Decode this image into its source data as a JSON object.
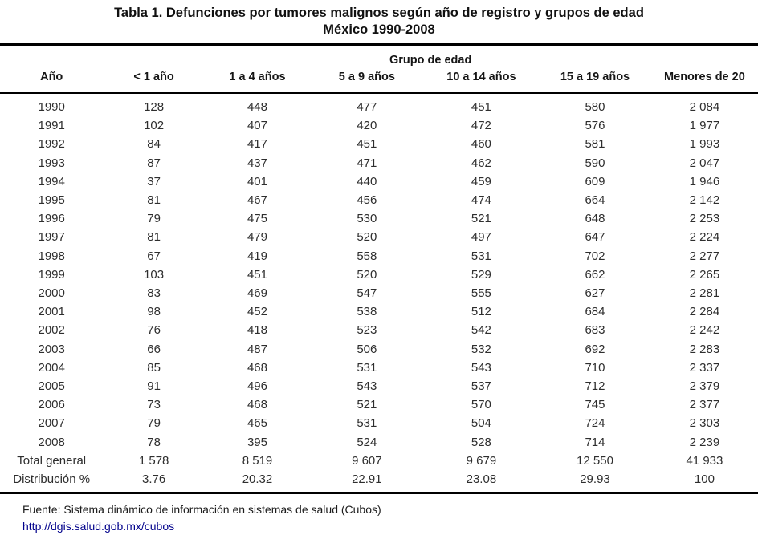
{
  "title": {
    "line1": "Tabla 1. Defunciones por tumores malignos según año de registro y grupos de edad",
    "line2": "México 1990-2008"
  },
  "table": {
    "group_header": "Grupo de edad",
    "columns": [
      "Año",
      "< 1 año",
      "1 a 4 años",
      "5 a 9 años",
      "10 a 14 años",
      "15 a 19 años",
      "Menores de 20"
    ],
    "rows": [
      [
        "1990",
        "128",
        "448",
        "477",
        "451",
        "580",
        "2 084"
      ],
      [
        "1991",
        "102",
        "407",
        "420",
        "472",
        "576",
        "1 977"
      ],
      [
        "1992",
        "84",
        "417",
        "451",
        "460",
        "581",
        "1 993"
      ],
      [
        "1993",
        "87",
        "437",
        "471",
        "462",
        "590",
        "2 047"
      ],
      [
        "1994",
        "37",
        "401",
        "440",
        "459",
        "609",
        "1 946"
      ],
      [
        "1995",
        "81",
        "467",
        "456",
        "474",
        "664",
        "2 142"
      ],
      [
        "1996",
        "79",
        "475",
        "530",
        "521",
        "648",
        "2 253"
      ],
      [
        "1997",
        "81",
        "479",
        "520",
        "497",
        "647",
        "2 224"
      ],
      [
        "1998",
        "67",
        "419",
        "558",
        "531",
        "702",
        "2 277"
      ],
      [
        "1999",
        "103",
        "451",
        "520",
        "529",
        "662",
        "2 265"
      ],
      [
        "2000",
        "83",
        "469",
        "547",
        "555",
        "627",
        "2 281"
      ],
      [
        "2001",
        "98",
        "452",
        "538",
        "512",
        "684",
        "2 284"
      ],
      [
        "2002",
        "76",
        "418",
        "523",
        "542",
        "683",
        "2 242"
      ],
      [
        "2003",
        "66",
        "487",
        "506",
        "532",
        "692",
        "2 283"
      ],
      [
        "2004",
        "85",
        "468",
        "531",
        "543",
        "710",
        "2 337"
      ],
      [
        "2005",
        "91",
        "496",
        "543",
        "537",
        "712",
        "2 379"
      ],
      [
        "2006",
        "73",
        "468",
        "521",
        "570",
        "745",
        "2 377"
      ],
      [
        "2007",
        "79",
        "465",
        "531",
        "504",
        "724",
        "2 303"
      ],
      [
        "2008",
        "78",
        "395",
        "524",
        "528",
        "714",
        "2 239"
      ]
    ],
    "total_row": [
      "Total general",
      "1 578",
      "8 519",
      "9 607",
      "9 679",
      "12 550",
      "41 933"
    ],
    "distribution_row": [
      "Distribución %",
      "3.76",
      "20.32",
      "22.91",
      "23.08",
      "29.93",
      "100"
    ]
  },
  "footer": {
    "source": "Fuente: Sistema dinámico de información en sistemas de salud (Cubos)",
    "link": "http://dgis.salud.gob.mx/cubos",
    "link_color": "#00008b"
  }
}
